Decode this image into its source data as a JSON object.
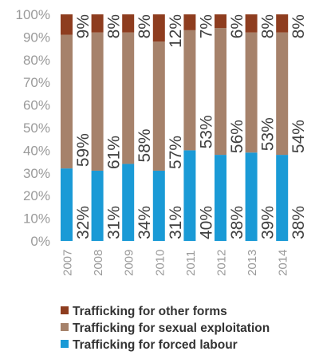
{
  "chart_data": {
    "type": "bar",
    "stacked": true,
    "categories": [
      "2007",
      "2008",
      "2009",
      "2010",
      "2011",
      "2012",
      "2013",
      "2014"
    ],
    "series": [
      {
        "name": "Trafficking for forced labour",
        "values": [
          32,
          31,
          34,
          31,
          40,
          38,
          39,
          38
        ],
        "labels": [
          "32%",
          "31%",
          "34%",
          "31%",
          "40%",
          "38%",
          "39%",
          "38%"
        ],
        "color": "#1a9ad6"
      },
      {
        "name": "Trafficking for sexual exploitation",
        "values": [
          59,
          61,
          58,
          57,
          53,
          56,
          53,
          54
        ],
        "labels": [
          "59%",
          "61%",
          "58%",
          "57%",
          "53%",
          "56%",
          "53%",
          "54%"
        ],
        "color": "#a6826b"
      },
      {
        "name": "Trafficking for other forms",
        "values": [
          9,
          8,
          8,
          12,
          7,
          6,
          8,
          8
        ],
        "labels": [
          "9%",
          "8%",
          "8%",
          "12%",
          "7%",
          "6%",
          "8%",
          "8%"
        ],
        "color": "#8e3d1f"
      }
    ],
    "y_ticks": [
      "0%",
      "10%",
      "20%",
      "30%",
      "40%",
      "50%",
      "60%",
      "70%",
      "80%",
      "90%",
      "100%"
    ],
    "ylim": [
      0,
      100
    ],
    "grid": false,
    "legend_position": "bottom-left",
    "legend_order": [
      2,
      1,
      0
    ]
  }
}
